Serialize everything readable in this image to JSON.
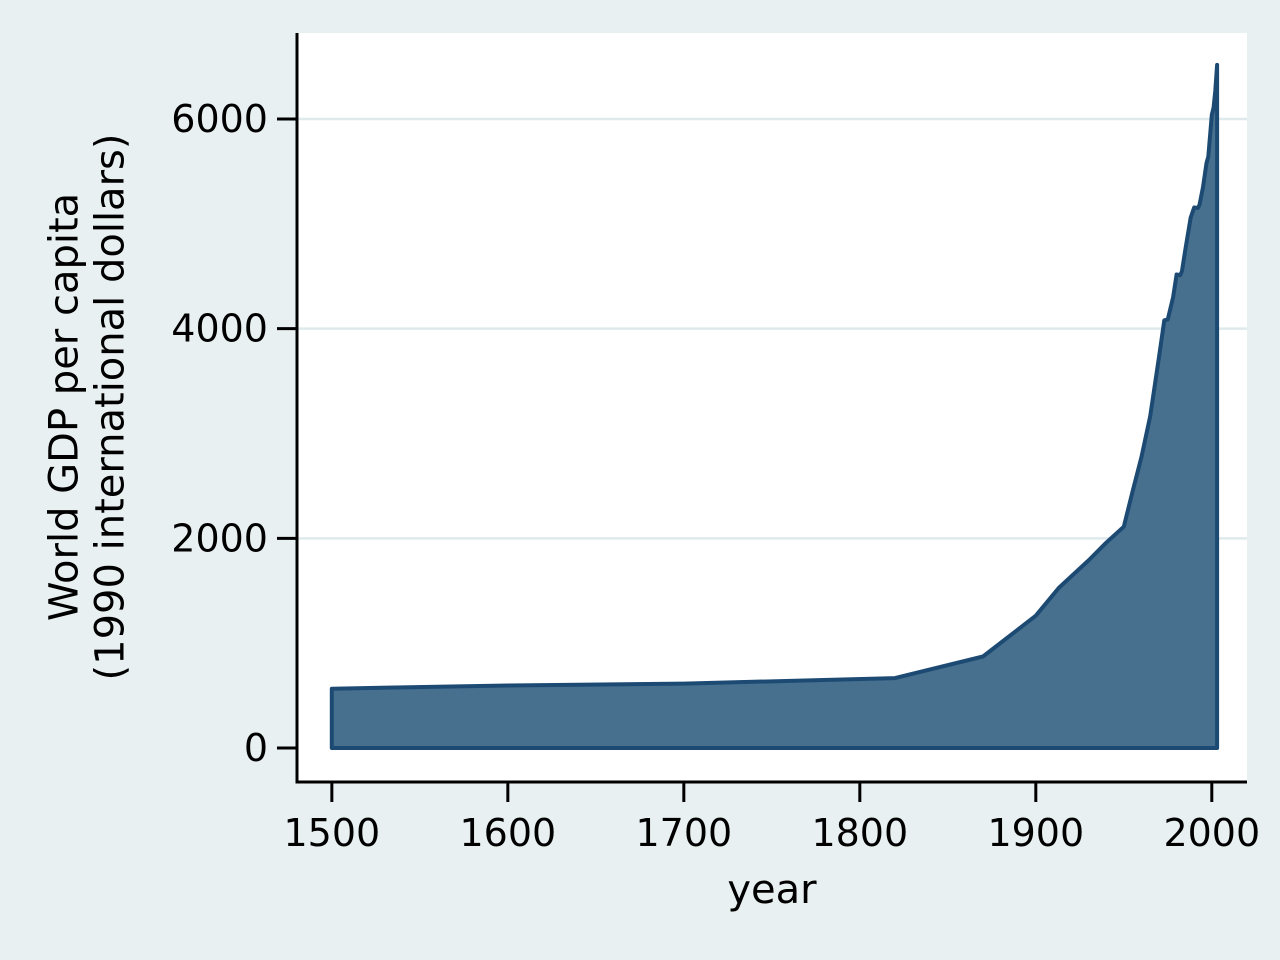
{
  "style": {
    "background_color": "#e9f0f2",
    "plot_background_color": "#ffffff",
    "gridline_color": "#dfeaed",
    "axis_color": "#000000",
    "area_fill_color": "#47708e",
    "area_line_color": "#1c4a73",
    "text_color": "#000000"
  },
  "chart_data": {
    "type": "area",
    "title": "",
    "xlabel": "year",
    "ylabel": "World GDP per capita (1990 international dollars)",
    "ylabel_lines": [
      "World GDP per capita",
      "(1990 international dollars)"
    ],
    "x_ticks": [
      1500,
      1600,
      1700,
      1800,
      1900,
      2000
    ],
    "y_ticks": [
      0,
      2000,
      4000,
      6000
    ],
    "grid_y": [
      2000,
      4000,
      6000
    ],
    "xlim": [
      1480.2,
      2020
    ],
    "ylim": [
      -324,
      6820
    ],
    "grid": true,
    "legend_position": "none",
    "series": [
      {
        "name": "World GDP per capita (1990 international dollars)",
        "baseline": 0,
        "points": [
          [
            1500,
            566
          ],
          [
            1600,
            596
          ],
          [
            1700,
            615
          ],
          [
            1820,
            667
          ],
          [
            1870,
            873
          ],
          [
            1900,
            1262
          ],
          [
            1913,
            1526
          ],
          [
            1930,
            1790
          ],
          [
            1940,
            1958
          ],
          [
            1950,
            2111
          ],
          [
            1955,
            2448
          ],
          [
            1960,
            2773
          ],
          [
            1965,
            3165
          ],
          [
            1970,
            3730
          ],
          [
            1973,
            4080
          ],
          [
            1975,
            4088
          ],
          [
            1978,
            4300
          ],
          [
            1980,
            4517
          ],
          [
            1982,
            4510
          ],
          [
            1983,
            4545
          ],
          [
            1985,
            4758
          ],
          [
            1988,
            5060
          ],
          [
            1990,
            5157
          ],
          [
            1992,
            5150
          ],
          [
            1993,
            5180
          ],
          [
            1995,
            5350
          ],
          [
            1997,
            5580
          ],
          [
            1998,
            5640
          ],
          [
            2000,
            6038
          ],
          [
            2001,
            6110
          ],
          [
            2002,
            6270
          ],
          [
            2003,
            6516
          ]
        ]
      }
    ]
  }
}
